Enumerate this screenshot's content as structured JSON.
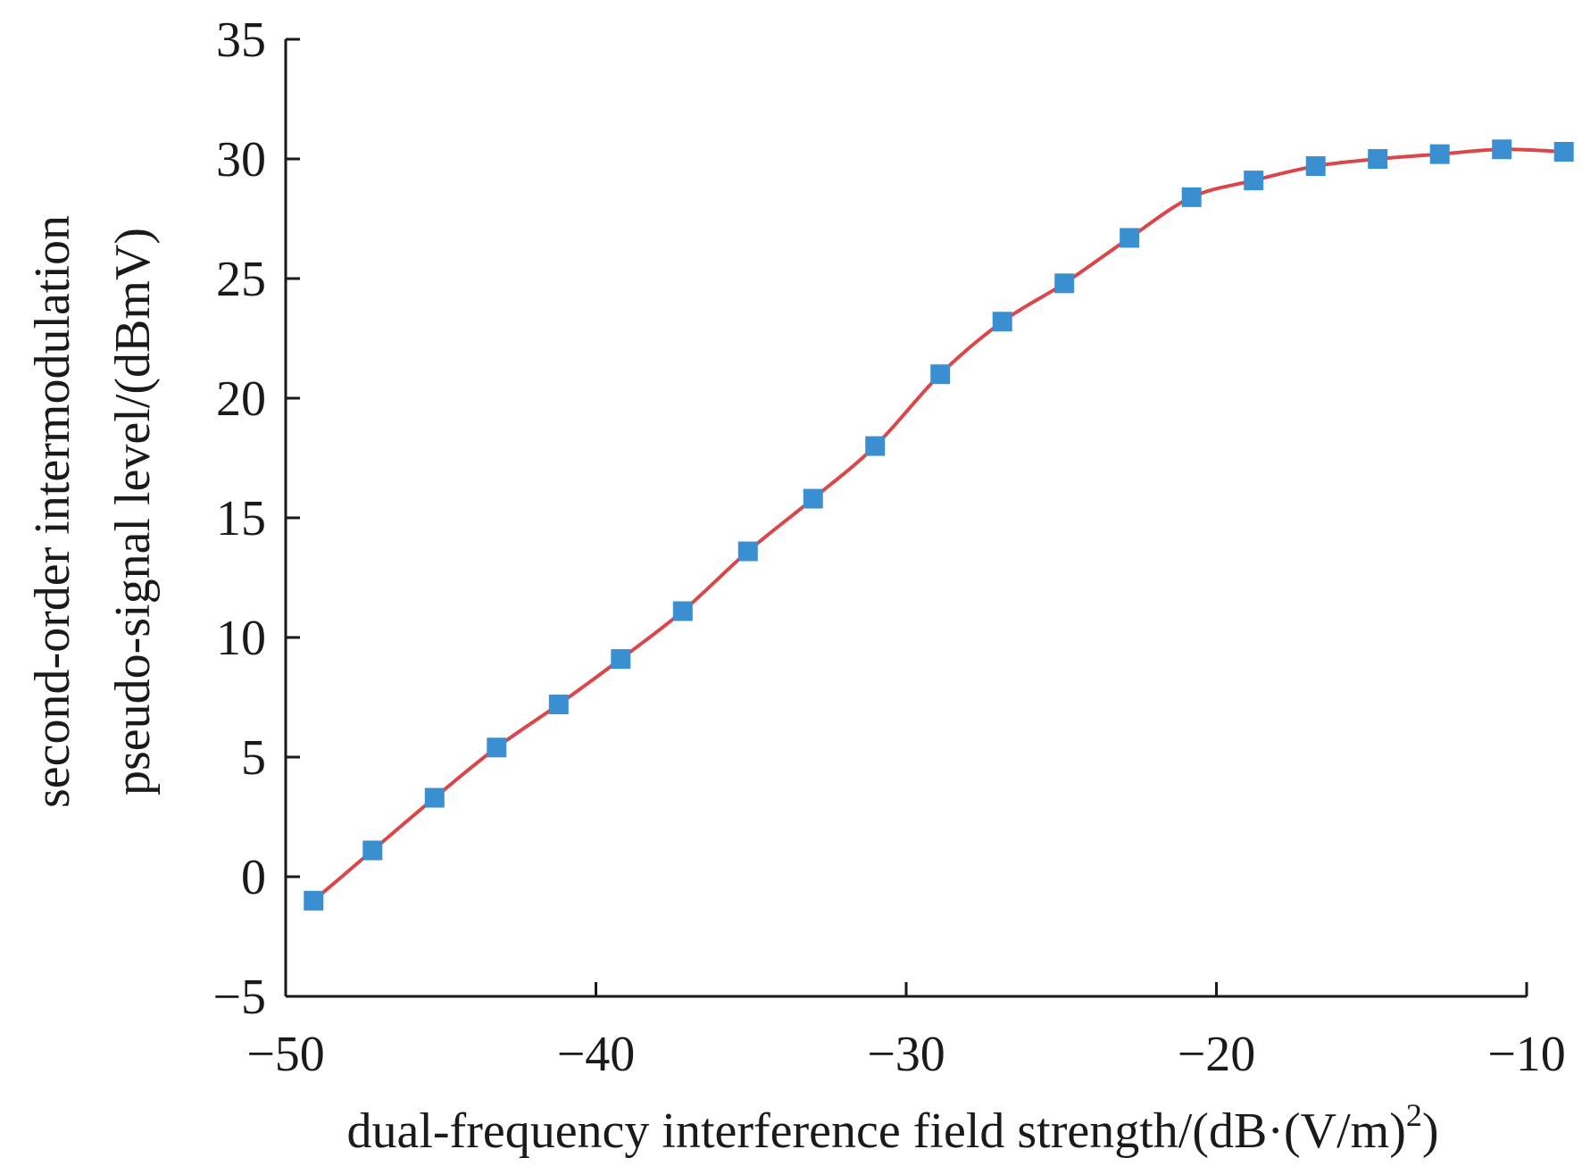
{
  "chart_data": {
    "type": "line",
    "title": "",
    "xlabel": "dual-frequency interference field strength/(dB·(V/m)²)",
    "xlabel_parts": {
      "main": "dual-frequency interference field strength/(dB·(V/m)",
      "sup": "2",
      "close": ")"
    },
    "ylabel_line1": "second-order intermodulation",
    "ylabel_line2": "pseudo-signal level/(dBmV)",
    "xlim": [
      -50,
      -10
    ],
    "ylim": [
      -5,
      35
    ],
    "xticks": [
      -50,
      -40,
      -30,
      -20,
      -10
    ],
    "yticks": [
      -5,
      0,
      5,
      10,
      15,
      20,
      25,
      30,
      35
    ],
    "grid": false,
    "legend": "none",
    "line_color": "#d9474b",
    "marker_color": "#3a8fd0",
    "marker": "square",
    "series": [
      {
        "x": [
          -49.1,
          -47.2,
          -45.2,
          -43.2,
          -41.2,
          -39.2,
          -37.2,
          -35.1,
          -33.0,
          -31.0,
          -28.9,
          -26.9,
          -24.9,
          -22.8,
          -20.8,
          -18.8,
          -16.8,
          -14.8,
          -12.8,
          -10.8,
          -8.8
        ],
        "values": [
          -1.0,
          1.1,
          3.3,
          5.4,
          7.2,
          9.1,
          11.1,
          13.6,
          15.8,
          18.0,
          21.0,
          23.2,
          24.8,
          26.7,
          28.4,
          29.1,
          29.7,
          30.0,
          30.2,
          30.4,
          30.3
        ]
      }
    ]
  }
}
